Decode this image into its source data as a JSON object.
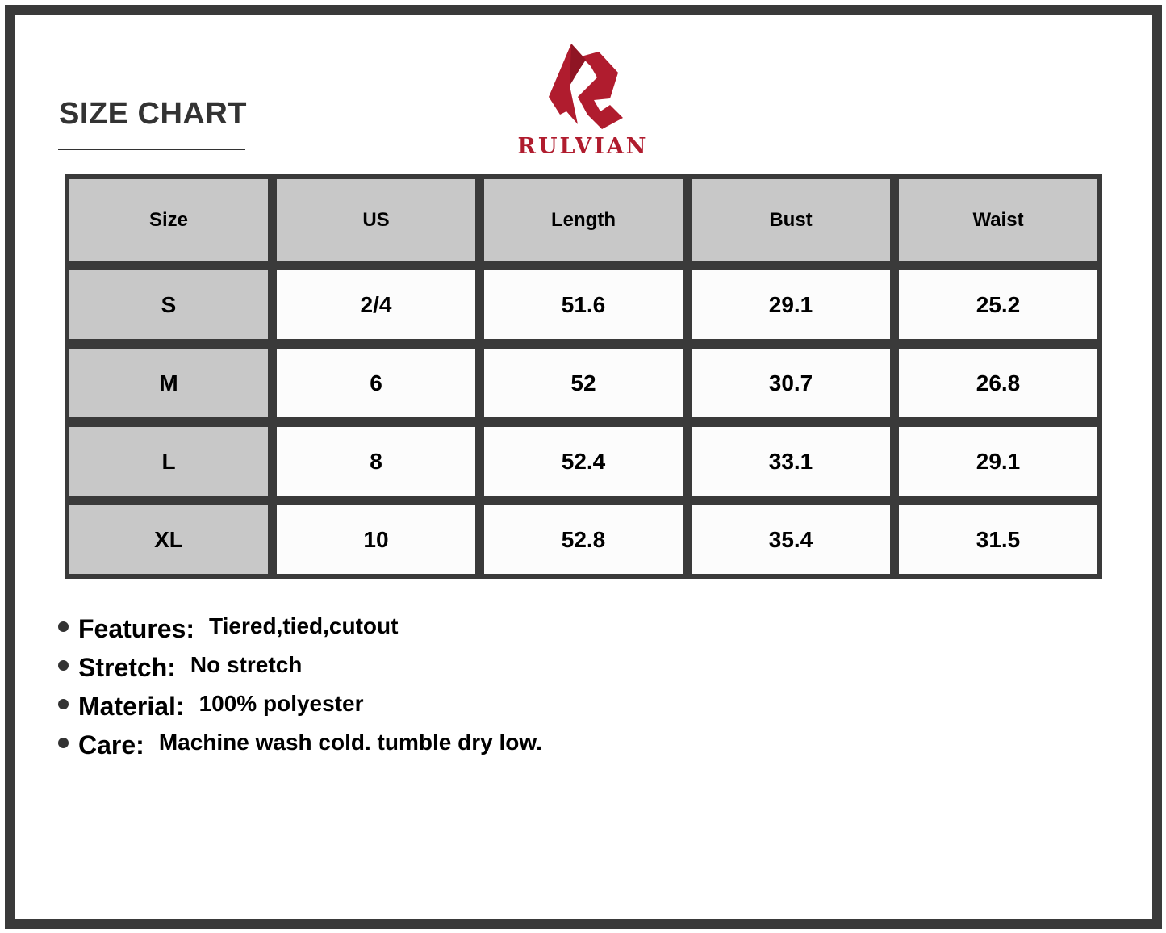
{
  "title": "SIZE CHART",
  "brand": {
    "name": "RULVIAN",
    "color": "#b01c2e"
  },
  "table": {
    "headers": [
      "Size",
      "US",
      "Length",
      "Bust",
      "Waist"
    ],
    "rows": [
      [
        "S",
        "2/4",
        "51.6",
        "29.1",
        "25.2"
      ],
      [
        "M",
        "6",
        "52",
        "30.7",
        "26.8"
      ],
      [
        "L",
        "8",
        "52.4",
        "33.1",
        "29.1"
      ],
      [
        "XL",
        "10",
        "52.8",
        "35.4",
        "31.5"
      ]
    ]
  },
  "features": [
    {
      "label": "Features:",
      "value": "Tiered,tied,cutout"
    },
    {
      "label": "Stretch:",
      "value": "No stretch"
    },
    {
      "label": "Material:",
      "value": "100% polyester"
    },
    {
      "label": "Care:",
      "value": "Machine wash cold. tumble dry low."
    }
  ]
}
